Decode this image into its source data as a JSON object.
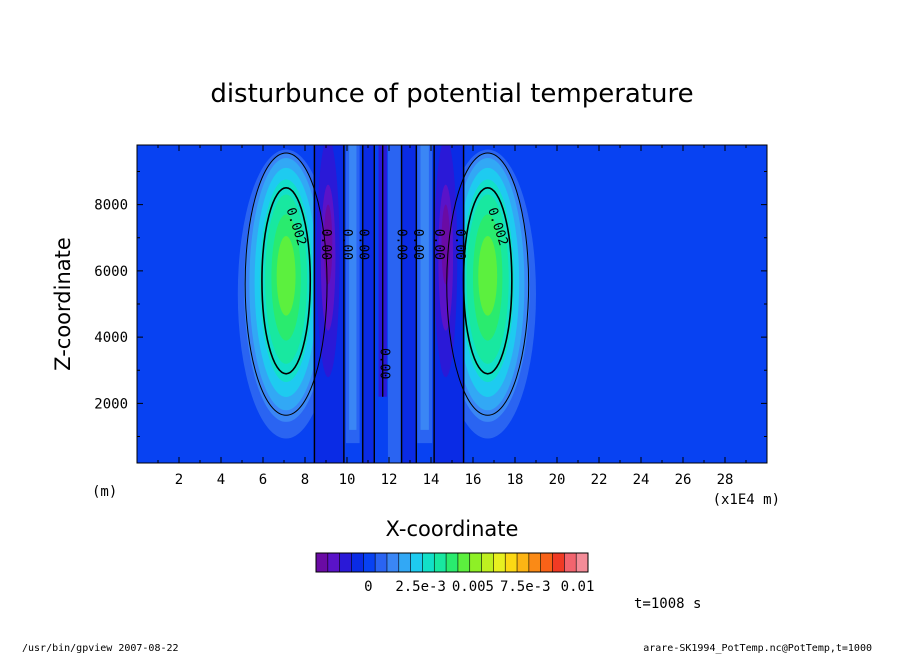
{
  "chart_data": {
    "type": "heatmap",
    "title": "disturbunce of potential temperature",
    "xlabel": "X-coordinate",
    "ylabel": "Z-coordinate",
    "x_unit_left": "(m)",
    "x_unit_right": "(x1E4 m)",
    "xlim": [
      0,
      30
    ],
    "ylim": [
      200,
      9800
    ],
    "x_ticks": [
      2,
      4,
      6,
      8,
      10,
      12,
      14,
      16,
      18,
      20,
      22,
      24,
      26,
      28
    ],
    "y_ticks": [
      2000,
      4000,
      6000,
      8000
    ],
    "colorbar": {
      "min": -0.0025,
      "max": 0.0105,
      "colors": [
        "#6a0ba4",
        "#5a13c8",
        "#2a19d7",
        "#0a2be5",
        "#0842f2",
        "#2a64f2",
        "#3a86f5",
        "#32a8f5",
        "#1ecbf0",
        "#12e0c8",
        "#18e8a0",
        "#2aeb6e",
        "#5cf03e",
        "#8ef026",
        "#bff020",
        "#e8f020",
        "#fcd814",
        "#fcb414",
        "#fa8a16",
        "#f86218",
        "#f03a24",
        "#f2646e",
        "#f48c98"
      ],
      "tick_labels": [
        {
          "value": 0,
          "label": "0"
        },
        {
          "value": 0.0025,
          "label": "2.5e-3"
        },
        {
          "value": 0.005,
          "label": "0.005"
        },
        {
          "value": 0.0075,
          "label": "7.5e-3"
        },
        {
          "value": 0.01,
          "label": "0.01"
        }
      ]
    },
    "contour_labels": [
      {
        "x": 7.4,
        "z": 7300,
        "label": "0.002",
        "angle": 72
      },
      {
        "x": 17.0,
        "z": 7300,
        "label": "0.002",
        "angle": 72
      },
      {
        "x": 8.8,
        "z": 6800,
        "label": "0.00",
        "angle": 90
      },
      {
        "x": 9.8,
        "z": 6800,
        "label": "0.00",
        "angle": 90
      },
      {
        "x": 10.6,
        "z": 6800,
        "label": "0.00",
        "angle": 90
      },
      {
        "x": 12.4,
        "z": 6800,
        "label": "0.00",
        "angle": 90
      },
      {
        "x": 13.2,
        "z": 6800,
        "label": "0.00",
        "angle": 90
      },
      {
        "x": 14.2,
        "z": 6800,
        "label": "0.00",
        "angle": 90
      },
      {
        "x": 15.2,
        "z": 6800,
        "label": "0.00",
        "angle": 90
      },
      {
        "x": 11.6,
        "z": 3200,
        "label": "0.00",
        "angle": 90
      }
    ]
  },
  "time_label": "t=1008 s",
  "footer_left": "/usr/bin/gpview  2007-08-22",
  "footer_right": "arare-SK1994_PotTemp.nc@PotTemp,t=1000"
}
